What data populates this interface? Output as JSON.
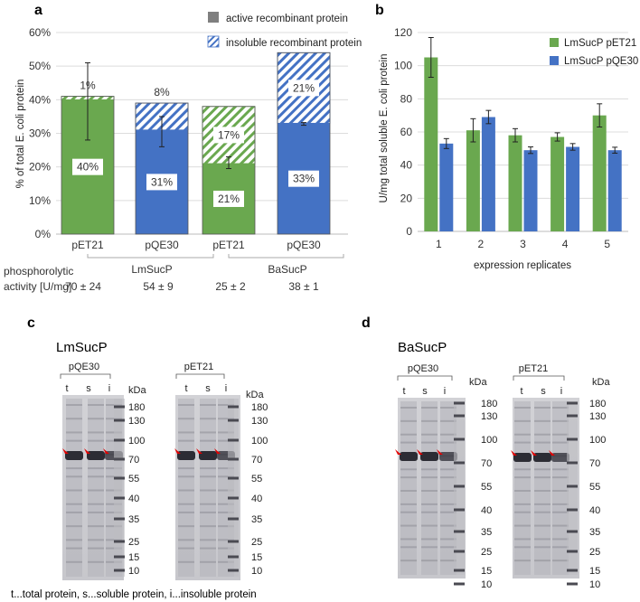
{
  "panels": {
    "a": "a",
    "b": "b",
    "c": "c",
    "d": "d"
  },
  "chart_data": [
    {
      "id": "a",
      "type": "bar",
      "stacked": true,
      "ylabel": "% of total E. coli protein",
      "ylim": [
        0,
        60
      ],
      "yticks": [
        "0%",
        "10%",
        "20%",
        "30%",
        "40%",
        "50%",
        "60%"
      ],
      "categories": [
        "pET21",
        "pQE30",
        "pET21",
        "pQE30"
      ],
      "groups": [
        "LmSucP",
        "BaSucP"
      ],
      "legend": [
        "active recombinant protein",
        "insoluble recombinant protein"
      ],
      "series": [
        {
          "name": "active recombinant protein",
          "values": [
            40,
            31,
            21,
            33
          ],
          "labels": [
            "40%",
            "31%",
            "21%",
            "33%"
          ]
        },
        {
          "name": "insoluble recombinant protein",
          "values": [
            1,
            8,
            17,
            21
          ],
          "labels": [
            "1%",
            "8%",
            "17%",
            "21%"
          ]
        }
      ],
      "bar_colors": [
        "#6aa84f",
        "#4472c4",
        "#6aa84f",
        "#4472c4"
      ],
      "error_bars": [
        [
          28,
          51
        ],
        [
          26,
          35
        ],
        [
          19.5,
          23
        ],
        [
          32.4,
          33.2
        ]
      ],
      "activity_label_line1": "phosphorolytic",
      "activity_label_line2": "activity [U/mg]",
      "activity": [
        "70 ± 24",
        "54 ± 9",
        "25 ± 2",
        "38 ± 1"
      ]
    },
    {
      "id": "b",
      "type": "bar",
      "ylabel": "U/mg total soluble E. coli protein",
      "xlabel": "expression replicates",
      "ylim": [
        0,
        120
      ],
      "yticks": [
        "0",
        "20",
        "40",
        "60",
        "80",
        "100",
        "120"
      ],
      "categories": [
        "1",
        "2",
        "3",
        "4",
        "5"
      ],
      "series": [
        {
          "name": "LmSucP pET21",
          "color": "#6aa84f",
          "values": [
            105,
            61,
            58,
            57,
            70
          ],
          "errors": [
            12,
            7,
            4,
            2.5,
            7
          ]
        },
        {
          "name": "LmSucP pQE30",
          "color": "#4472c4",
          "values": [
            53,
            69,
            49,
            51,
            49
          ],
          "errors": [
            3,
            4,
            2,
            2,
            1.8
          ]
        }
      ]
    }
  ],
  "gels": {
    "c": {
      "title": "LmSucP",
      "gel1_label": "pQE30",
      "gel2_label": "pET21",
      "lanes": [
        "t",
        "s",
        "i"
      ],
      "kda": "kDa",
      "markers": [
        "180",
        "130",
        "100",
        "70",
        "55",
        "40",
        "35",
        "25",
        "15",
        "10"
      ],
      "footnote": "t...total protein, s...soluble protein, i...insoluble protein"
    },
    "d": {
      "title": "BaSucP",
      "gel1_label": "pQE30",
      "gel2_label": "pET21",
      "lanes": [
        "t",
        "s",
        "i"
      ],
      "kda": "kDa",
      "markers": [
        "180",
        "130",
        "100",
        "70",
        "55",
        "40",
        "35",
        "25",
        "15",
        "10"
      ]
    }
  }
}
